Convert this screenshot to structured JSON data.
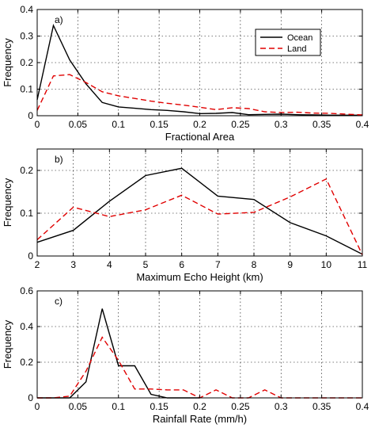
{
  "chart_data": [
    {
      "type": "line",
      "panel_label": "a)",
      "xlabel": "Fractional Area",
      "ylabel": "Frequency",
      "xlim": [
        0,
        0.4
      ],
      "ylim": [
        0,
        0.4
      ],
      "x_ticks": [
        0,
        0.05,
        0.1,
        0.15,
        0.2,
        0.25,
        0.3,
        0.35,
        0.4
      ],
      "x_tick_labels": [
        "0",
        "0.05",
        "0.1",
        "0.15",
        "0.2",
        "0.25",
        "0.3",
        "0.35",
        "0.4"
      ],
      "y_ticks": [
        0,
        0.1,
        0.2,
        0.3,
        0.4
      ],
      "y_tick_labels": [
        "0",
        "0.1",
        "0.2",
        "0.3",
        "0.4"
      ],
      "grid": true,
      "legend_position": "top-right",
      "series": [
        {
          "name": "Ocean",
          "color": "#000000",
          "dash": "solid",
          "x": [
            0,
            0.02,
            0.04,
            0.06,
            0.08,
            0.1,
            0.12,
            0.14,
            0.16,
            0.18,
            0.2,
            0.22,
            0.24,
            0.26,
            0.28,
            0.3,
            0.32,
            0.34,
            0.36,
            0.38,
            0.4
          ],
          "y": [
            0.06,
            0.34,
            0.21,
            0.12,
            0.05,
            0.033,
            0.028,
            0.023,
            0.02,
            0.015,
            0.008,
            0.009,
            0.012,
            0.004,
            0.005,
            0.006,
            0.004,
            0.003,
            0.002,
            0.002,
            0.002
          ]
        },
        {
          "name": "Land",
          "color": "#e00000",
          "dash": "dashed",
          "x": [
            0,
            0.02,
            0.04,
            0.06,
            0.08,
            0.1,
            0.12,
            0.14,
            0.16,
            0.18,
            0.2,
            0.22,
            0.24,
            0.26,
            0.28,
            0.3,
            0.32,
            0.34,
            0.36,
            0.38,
            0.4
          ],
          "y": [
            0.02,
            0.15,
            0.155,
            0.125,
            0.09,
            0.075,
            0.065,
            0.055,
            0.047,
            0.04,
            0.032,
            0.023,
            0.03,
            0.027,
            0.015,
            0.012,
            0.013,
            0.01,
            0.009,
            0.006,
            0.003
          ]
        }
      ]
    },
    {
      "type": "line",
      "panel_label": "b)",
      "xlabel": "Maximum Echo Height (km)",
      "ylabel": "Frequency",
      "xlim": [
        2,
        11
      ],
      "ylim": [
        0,
        0.25
      ],
      "x_ticks": [
        2,
        3,
        4,
        5,
        6,
        7,
        8,
        9,
        10,
        11
      ],
      "x_tick_labels": [
        "2",
        "3",
        "4",
        "5",
        "6",
        "7",
        "8",
        "9",
        "10",
        "11"
      ],
      "y_ticks": [
        0,
        0.1,
        0.2
      ],
      "y_tick_labels": [
        "0",
        "0.1",
        "0.2"
      ],
      "grid": true,
      "series": [
        {
          "name": "Ocean",
          "color": "#000000",
          "dash": "solid",
          "x": [
            2,
            3,
            4,
            5,
            6,
            7,
            8,
            9,
            10,
            11
          ],
          "y": [
            0.032,
            0.06,
            0.128,
            0.188,
            0.205,
            0.14,
            0.132,
            0.078,
            0.047,
            0.004
          ]
        },
        {
          "name": "Land",
          "color": "#e00000",
          "dash": "dashed",
          "x": [
            2,
            3,
            4,
            5,
            6,
            7,
            8,
            9,
            10,
            11
          ],
          "y": [
            0.038,
            0.114,
            0.092,
            0.108,
            0.142,
            0.098,
            0.102,
            0.138,
            0.18,
            0.003
          ]
        }
      ]
    },
    {
      "type": "line",
      "panel_label": "c)",
      "xlabel": "Rainfall Rate (mm/h)",
      "ylabel": "Frequency",
      "xlim": [
        0,
        0.4
      ],
      "ylim": [
        0,
        0.6
      ],
      "x_ticks": [
        0,
        0.05,
        0.1,
        0.15,
        0.2,
        0.25,
        0.3,
        0.35,
        0.4
      ],
      "x_tick_labels": [
        "0",
        "0.05",
        "0.1",
        "0.15",
        "0.2",
        "0.25",
        "0.3",
        "0.35",
        "0.4"
      ],
      "y_ticks": [
        0,
        0.2,
        0.4,
        0.6
      ],
      "y_tick_labels": [
        "0",
        "0.2",
        "0.4",
        "0.6"
      ],
      "grid": true,
      "series": [
        {
          "name": "Ocean",
          "color": "#000000",
          "dash": "solid",
          "x": [
            0,
            0.02,
            0.04,
            0.06,
            0.08,
            0.1,
            0.12,
            0.14,
            0.16,
            0.18,
            0.2
          ],
          "y": [
            0,
            0,
            0,
            0.09,
            0.5,
            0.18,
            0.18,
            0.02,
            0,
            0,
            0
          ]
        },
        {
          "name": "Land",
          "color": "#e00000",
          "dash": "dashed",
          "x": [
            0,
            0.02,
            0.04,
            0.06,
            0.08,
            0.1,
            0.12,
            0.14,
            0.16,
            0.18,
            0.2,
            0.22,
            0.24,
            0.26,
            0.28,
            0.3,
            0.32,
            0.34,
            0.36,
            0.38,
            0.4
          ],
          "y": [
            0,
            0,
            0.01,
            0.15,
            0.34,
            0.21,
            0.05,
            0.05,
            0.045,
            0.045,
            0,
            0.045,
            0,
            0,
            0.045,
            0,
            0,
            0,
            0,
            0,
            0
          ]
        }
      ]
    }
  ]
}
